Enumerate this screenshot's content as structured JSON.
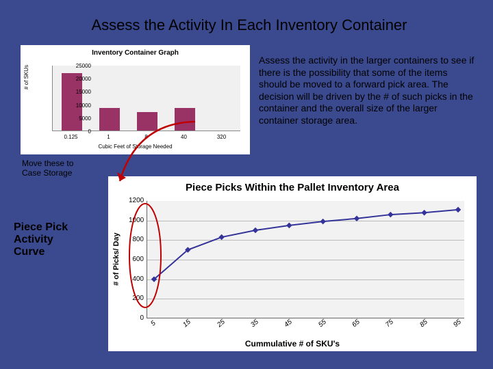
{
  "title": "Assess the Activity In Each Inventory Container",
  "body": "Assess the activity in the larger containers to see if there is the possibility that some of the items should be moved to a forward pick area.  The decision will be driven by the # of such picks in the container and the overall size of the larger container storage area.",
  "annotation": "Move these to\nCase Storage",
  "axis_title": "Piece Pick\nActivity\nCurve",
  "bar_chart": {
    "type": "bar",
    "title": "Inventory Container Graph",
    "ylabel": "# of SKUs",
    "xlabel": "Cubic Feet of Storage Needed",
    "categories": [
      "0.125",
      "1",
      "8",
      "40",
      "320"
    ],
    "values": [
      22000,
      8500,
      7000,
      8500,
      0
    ],
    "ylim": [
      0,
      25000
    ],
    "ytick_step": 5000,
    "bar_color": "#993366",
    "plot_bg": "#f0f0f0",
    "bg": "#ffffff"
  },
  "line_chart": {
    "type": "line",
    "title": "Piece Picks Within the Pallet Inventory Area",
    "ylabel": "# of Picks/ Day",
    "xlabel": "Cummulative # of SKU's",
    "x": [
      5,
      15,
      25,
      35,
      45,
      55,
      65,
      75,
      85,
      95
    ],
    "y": [
      400,
      700,
      830,
      900,
      950,
      990,
      1020,
      1060,
      1080,
      1110
    ],
    "ylim": [
      0,
      1200
    ],
    "ytick_step": 200,
    "line_color": "#333399",
    "marker": "diamond",
    "marker_color": "#333399",
    "plot_bg": "#f2f2f2",
    "grid_color": "#bbbbbb",
    "bg": "#ffffff"
  },
  "annotations_style": {
    "arrow_color": "#c00000",
    "circle_color": "#c00000",
    "circle_stroke": 2
  },
  "slide_bg": "#3b4a8f"
}
